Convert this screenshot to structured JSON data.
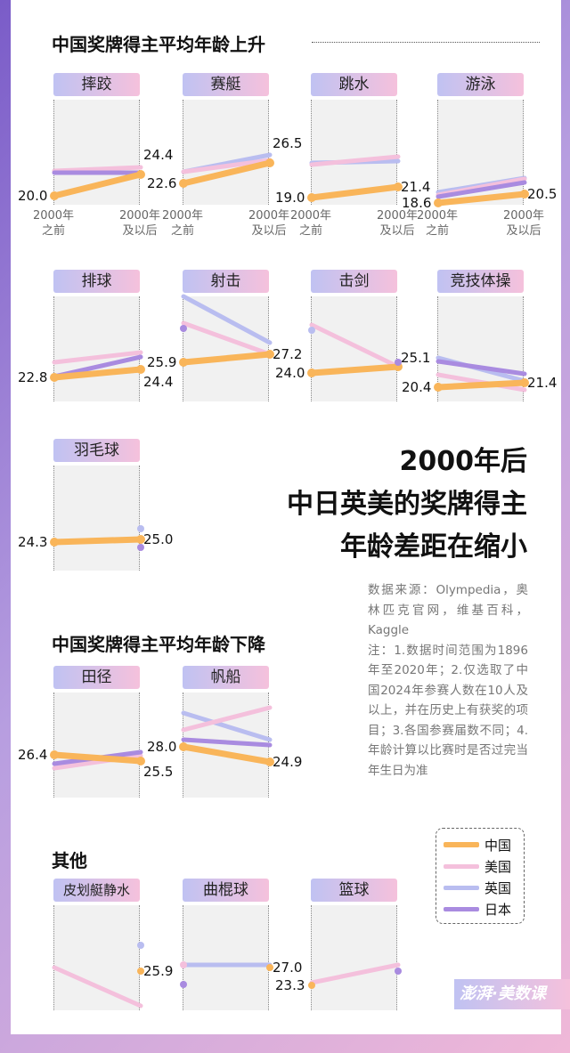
{
  "sections": {
    "up": "中国奖牌得主平均年龄上升",
    "down": "中国奖牌得主平均年龄下降",
    "other": "其他"
  },
  "headline": [
    "2000年后",
    "中日英美的奖牌得主",
    "年龄差距在缩小"
  ],
  "notes": "数据来源：Olympedia，奥林匹克官网，维基百科， Kaggle\n注：1.数据时间范围为1896年至2020年；2.仅选取了中国2024年参赛人数在10人及以上，并在历史上有获奖的项目；3.各国参赛届数不同；4.年龄计算以比赛时是否过完当年生日为准",
  "axis_labels": [
    "2000年\n之前",
    "2000年\n及以后"
  ],
  "legend": [
    {
      "name": "中国",
      "color": "#f9b55a"
    },
    {
      "name": "美国",
      "color": "#f4c0dc"
    },
    {
      "name": "英国",
      "color": "#b9bdf0"
    },
    {
      "name": "日本",
      "color": "#a98be0"
    }
  ],
  "watermark": "澎湃·美数课",
  "chart_data": {
    "type": "line",
    "categories": [
      "2000年之前",
      "2000年及以后"
    ],
    "series_name": "中国",
    "panels": [
      {
        "sport": "摔跤",
        "group": "up",
        "china": [
          20.0,
          24.4
        ]
      },
      {
        "sport": "赛艇",
        "group": "up",
        "china": [
          22.6,
          26.5
        ]
      },
      {
        "sport": "跳水",
        "group": "up",
        "china": [
          19.0,
          21.4
        ]
      },
      {
        "sport": "游泳",
        "group": "up",
        "china": [
          18.6,
          20.5
        ]
      },
      {
        "sport": "排球",
        "group": "up",
        "china": [
          22.8,
          24.4
        ]
      },
      {
        "sport": "射击",
        "group": "up",
        "china": [
          25.9,
          27.2
        ]
      },
      {
        "sport": "击剑",
        "group": "up",
        "china": [
          24.0,
          25.1
        ]
      },
      {
        "sport": "竞技体操",
        "group": "up",
        "china": [
          20.4,
          21.4
        ]
      },
      {
        "sport": "羽毛球",
        "group": "up",
        "china": [
          24.3,
          25.0
        ]
      },
      {
        "sport": "田径",
        "group": "down",
        "china": [
          26.4,
          25.5
        ]
      },
      {
        "sport": "帆船",
        "group": "down",
        "china": [
          28.0,
          24.9
        ]
      },
      {
        "sport": "皮划艇静水",
        "group": "other",
        "china": [
          null,
          25.9
        ]
      },
      {
        "sport": "曲棍球",
        "group": "other",
        "china": [
          null,
          27.0
        ]
      },
      {
        "sport": "篮球",
        "group": "other",
        "china": [
          23.3,
          null
        ]
      }
    ]
  }
}
